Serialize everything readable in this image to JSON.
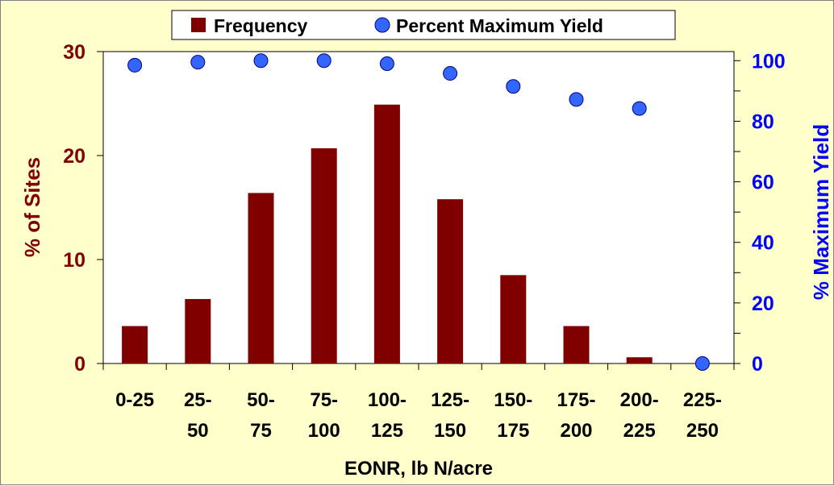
{
  "chart_data": {
    "type": "bar",
    "categories": [
      [
        "0-25"
      ],
      [
        "25-",
        "50"
      ],
      [
        "50-",
        "75"
      ],
      [
        "75-",
        "100"
      ],
      [
        "100-",
        "125"
      ],
      [
        "125-",
        "150"
      ],
      [
        "150-",
        "175"
      ],
      [
        "175-",
        "200"
      ],
      [
        "200-",
        "225"
      ],
      [
        "225-",
        "250"
      ]
    ],
    "xlabel": "EONR, lb N/acre",
    "ylabel_left": "% of Sites",
    "ylabel_right": "% Maximum Yield",
    "ylim_left": [
      0,
      30
    ],
    "yticks_left": [
      "0",
      "10",
      "20",
      "30"
    ],
    "ylim_right": [
      0,
      103
    ],
    "yticks_right": [
      "0",
      "20",
      "40",
      "60",
      "80",
      "100"
    ],
    "legend": {
      "placement": "top-center",
      "bar_label": "Frequency",
      "point_label": "Percent Maximum Yield"
    },
    "series": [
      {
        "name": "Frequency",
        "kind": "bar",
        "axis": "left",
        "color": "#800000",
        "values": [
          3.6,
          6.2,
          16.4,
          20.7,
          24.9,
          15.8,
          8.5,
          3.6,
          0.6,
          0
        ]
      },
      {
        "name": "Percent Maximum Yield",
        "kind": "scatter",
        "axis": "right",
        "color": "#3366FF",
        "values": [
          98.5,
          99.5,
          100,
          100,
          99,
          95.8,
          91.5,
          87.2,
          84.2,
          0
        ]
      }
    ],
    "colors": {
      "background": "#FFFFCC",
      "plot_area": "#FFFFFF",
      "left_axis_text": "#800000",
      "right_axis_text": "#0000FF",
      "axis_text": "#000000"
    },
    "grid": false
  }
}
